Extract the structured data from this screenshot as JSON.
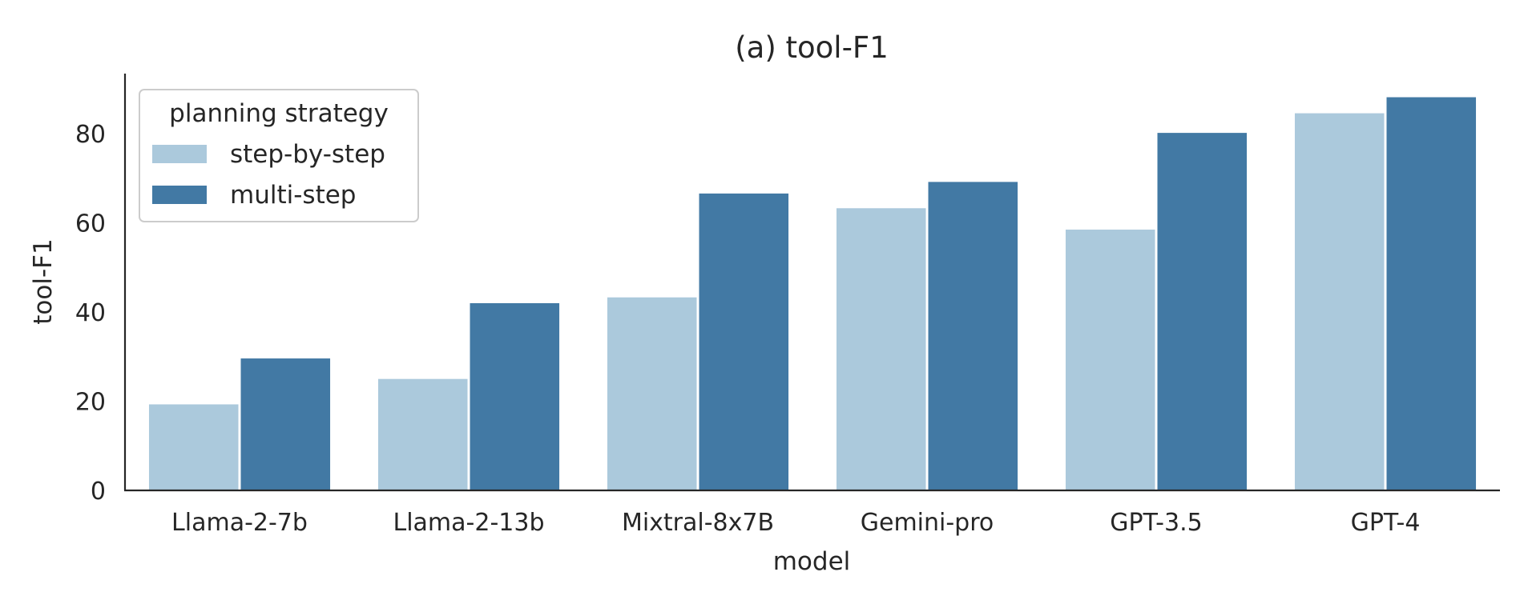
{
  "chart_data": {
    "type": "bar",
    "title": "(a) tool-F1",
    "xlabel": "model",
    "ylabel": "tool-F1",
    "categories": [
      "Llama-2-7b",
      "Llama-2-13b",
      "Mixtral-8x7B",
      "Gemini-pro",
      "GPT-3.5",
      "GPT-4"
    ],
    "series": [
      {
        "name": "step-by-step",
        "values": [
          19.3,
          25.0,
          43.3,
          63.3,
          58.5,
          84.6
        ]
      },
      {
        "name": "multi-step",
        "values": [
          29.6,
          42.0,
          66.6,
          69.2,
          80.2,
          88.2
        ]
      }
    ],
    "ylim": [
      0,
      93.5
    ],
    "yticks": [
      "0",
      "20",
      "40",
      "60",
      "80"
    ],
    "legend": {
      "title": "planning strategy",
      "placement": "top-left"
    },
    "grid": false,
    "colors": {
      "step-by-step": "#abc9dc",
      "multi-step": "#4279a4",
      "axis": "#262626"
    }
  }
}
